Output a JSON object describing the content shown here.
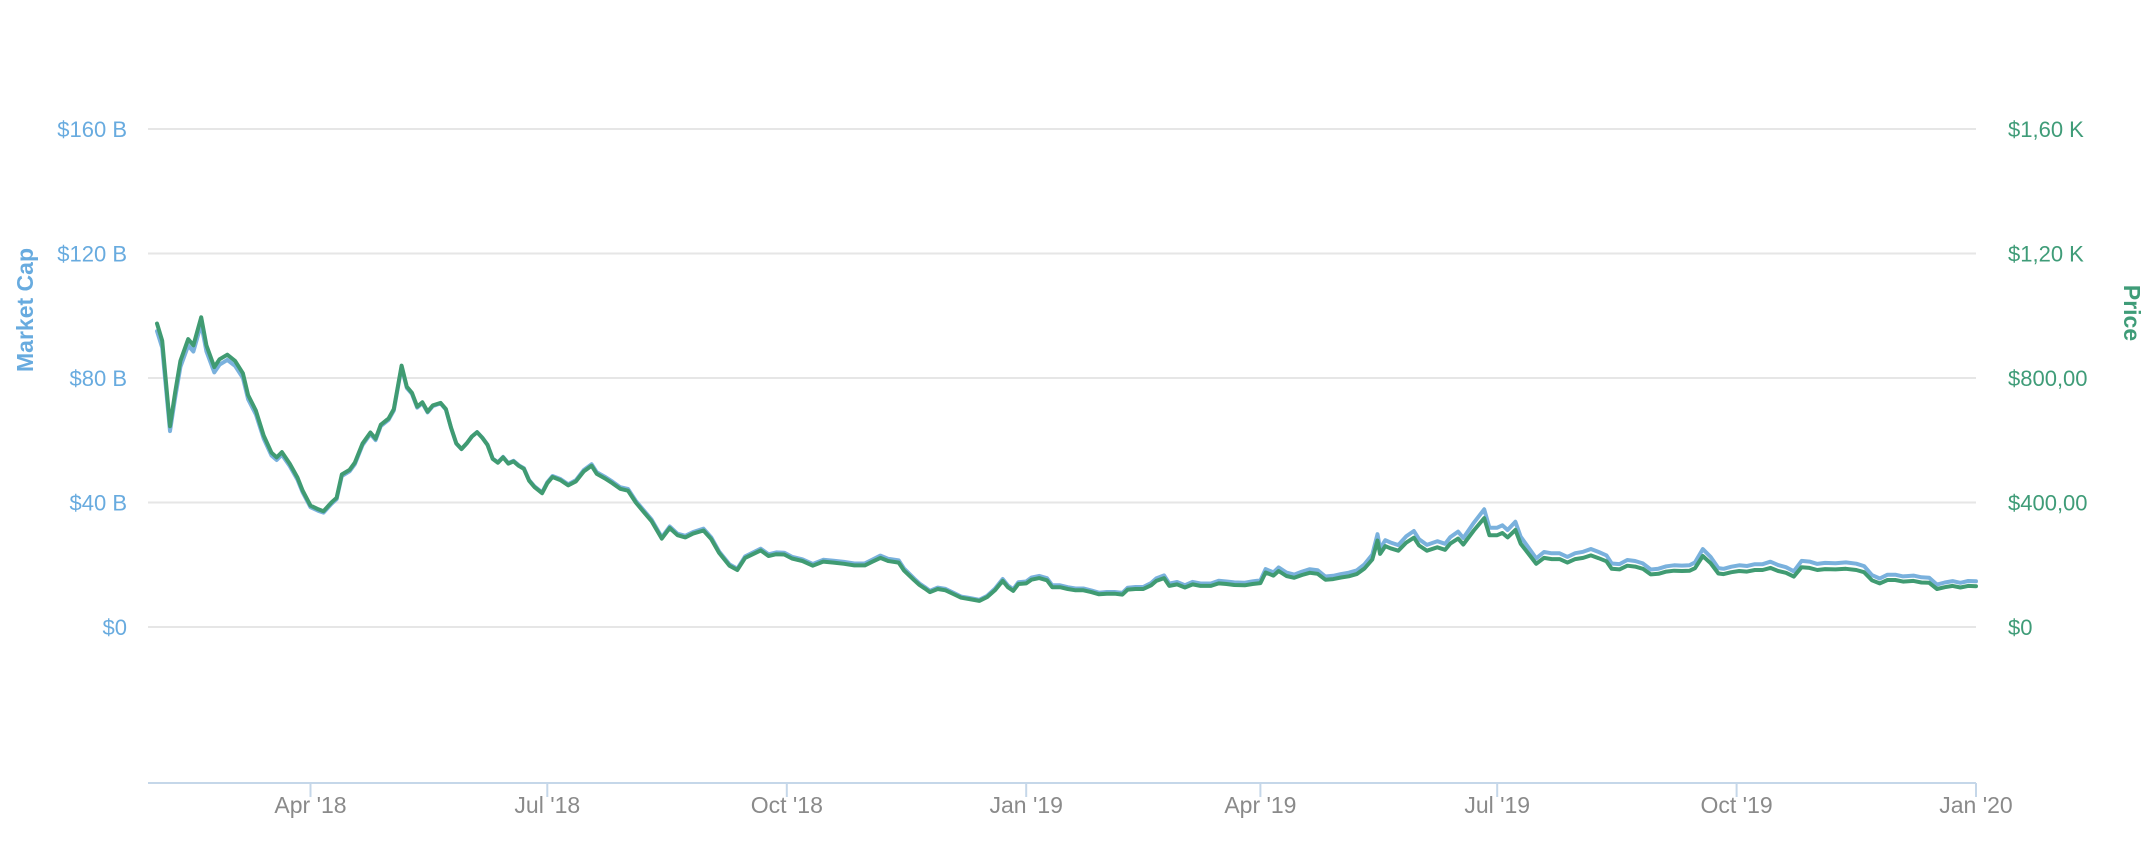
{
  "chart_data": {
    "type": "line",
    "title": "",
    "background": "#ffffff",
    "grid_color": "#e6e6e6",
    "axis_line_color": "#c5d7e9",
    "x_label_color": "#8a8a8a",
    "legend_position": "none",
    "x_axis": {
      "tick_labels": [
        "Apr '18",
        "Jul '18",
        "Oct '18",
        "Jan '19",
        "Apr '19",
        "Jul '19",
        "Oct '19",
        "Jan '20"
      ],
      "tick_dates": [
        "2018-04-01",
        "2018-07-01",
        "2018-10-01",
        "2019-01-01",
        "2019-04-01",
        "2019-07-01",
        "2019-10-01",
        "2020-01-01"
      ],
      "range_dates": [
        "2018-02-01",
        "2020-01-01"
      ]
    },
    "y_axis_left": {
      "title": "Market Cap",
      "unit": "USD billions",
      "tick_labels": [
        "$160 B",
        "$120 B",
        "$80 B",
        "$40 B",
        "$0"
      ],
      "tick_values": [
        160,
        120,
        80,
        40,
        0
      ],
      "max": 160,
      "color": "#68abdf"
    },
    "y_axis_right": {
      "title": "Price",
      "unit": "USD",
      "tick_labels": [
        "$1,60 K",
        "$1,20 K",
        "$800,00",
        "$400,00",
        "$0"
      ],
      "tick_values": [
        1600,
        1200,
        800,
        400,
        0
      ],
      "max": 1600,
      "color": "#3f9c78"
    },
    "series": [
      {
        "name": "Market Cap",
        "axis": "left",
        "color": "#7ab1dd",
        "line_width": 4,
        "derivation": "market_cap_billions = price_usd * circulating_supply_millions / 1000",
        "supply_model_millions": {
          "start": 97.5,
          "end": 112.0
        }
      },
      {
        "name": "Price",
        "axis": "right",
        "color": "#409b72",
        "line_width": 4,
        "points": [
          [
            "2018-02-01",
            975
          ],
          [
            "2018-02-03",
            920
          ],
          [
            "2018-02-06",
            645
          ],
          [
            "2018-02-08",
            755
          ],
          [
            "2018-02-10",
            855
          ],
          [
            "2018-02-13",
            925
          ],
          [
            "2018-02-15",
            905
          ],
          [
            "2018-02-18",
            995
          ],
          [
            "2018-02-20",
            905
          ],
          [
            "2018-02-23",
            835
          ],
          [
            "2018-02-25",
            860
          ],
          [
            "2018-02-28",
            875
          ],
          [
            "2018-03-03",
            855
          ],
          [
            "2018-03-06",
            815
          ],
          [
            "2018-03-08",
            745
          ],
          [
            "2018-03-11",
            695
          ],
          [
            "2018-03-14",
            615
          ],
          [
            "2018-03-17",
            560
          ],
          [
            "2018-03-19",
            545
          ],
          [
            "2018-03-21",
            562
          ],
          [
            "2018-03-24",
            525
          ],
          [
            "2018-03-27",
            480
          ],
          [
            "2018-03-29",
            438
          ],
          [
            "2018-04-01",
            390
          ],
          [
            "2018-04-04",
            378
          ],
          [
            "2018-04-06",
            372
          ],
          [
            "2018-04-09",
            400
          ],
          [
            "2018-04-11",
            415
          ],
          [
            "2018-04-13",
            490
          ],
          [
            "2018-04-16",
            505
          ],
          [
            "2018-04-18",
            528
          ],
          [
            "2018-04-21",
            590
          ],
          [
            "2018-04-24",
            625
          ],
          [
            "2018-04-26",
            605
          ],
          [
            "2018-04-28",
            650
          ],
          [
            "2018-05-01",
            670
          ],
          [
            "2018-05-03",
            700
          ],
          [
            "2018-05-06",
            840
          ],
          [
            "2018-05-08",
            772
          ],
          [
            "2018-05-10",
            752
          ],
          [
            "2018-05-12",
            708
          ],
          [
            "2018-05-14",
            722
          ],
          [
            "2018-05-16",
            692
          ],
          [
            "2018-05-18",
            712
          ],
          [
            "2018-05-21",
            720
          ],
          [
            "2018-05-23",
            700
          ],
          [
            "2018-05-25",
            640
          ],
          [
            "2018-05-27",
            590
          ],
          [
            "2018-05-29",
            572
          ],
          [
            "2018-05-31",
            590
          ],
          [
            "2018-06-02",
            612
          ],
          [
            "2018-06-04",
            626
          ],
          [
            "2018-06-06",
            608
          ],
          [
            "2018-06-08",
            585
          ],
          [
            "2018-06-10",
            540
          ],
          [
            "2018-06-12",
            528
          ],
          [
            "2018-06-14",
            545
          ],
          [
            "2018-06-16",
            525
          ],
          [
            "2018-06-18",
            532
          ],
          [
            "2018-06-20",
            518
          ],
          [
            "2018-06-22",
            508
          ],
          [
            "2018-06-24",
            470
          ],
          [
            "2018-06-26",
            450
          ],
          [
            "2018-06-29",
            430
          ],
          [
            "2018-07-01",
            462
          ],
          [
            "2018-07-03",
            482
          ],
          [
            "2018-07-06",
            472
          ],
          [
            "2018-07-09",
            455
          ],
          [
            "2018-07-12",
            468
          ],
          [
            "2018-07-15",
            500
          ],
          [
            "2018-07-18",
            518
          ],
          [
            "2018-07-20",
            492
          ],
          [
            "2018-07-23",
            478
          ],
          [
            "2018-07-26",
            462
          ],
          [
            "2018-07-29",
            444
          ],
          [
            "2018-08-01",
            438
          ],
          [
            "2018-08-04",
            400
          ],
          [
            "2018-08-07",
            370
          ],
          [
            "2018-08-10",
            341
          ],
          [
            "2018-08-14",
            284
          ],
          [
            "2018-08-17",
            318
          ],
          [
            "2018-08-20",
            295
          ],
          [
            "2018-08-23",
            288
          ],
          [
            "2018-08-26",
            300
          ],
          [
            "2018-08-30",
            310
          ],
          [
            "2018-09-02",
            282
          ],
          [
            "2018-09-05",
            238
          ],
          [
            "2018-09-09",
            197
          ],
          [
            "2018-09-12",
            183
          ],
          [
            "2018-09-15",
            222
          ],
          [
            "2018-09-21",
            246
          ],
          [
            "2018-09-24",
            228
          ],
          [
            "2018-09-27",
            234
          ],
          [
            "2018-09-30",
            233
          ],
          [
            "2018-10-03",
            220
          ],
          [
            "2018-10-07",
            212
          ],
          [
            "2018-10-11",
            197
          ],
          [
            "2018-10-15",
            210
          ],
          [
            "2018-10-19",
            207
          ],
          [
            "2018-10-23",
            203
          ],
          [
            "2018-10-27",
            198
          ],
          [
            "2018-10-31",
            198
          ],
          [
            "2018-11-03",
            210
          ],
          [
            "2018-11-06",
            222
          ],
          [
            "2018-11-09",
            212
          ],
          [
            "2018-11-13",
            207
          ],
          [
            "2018-11-15",
            182
          ],
          [
            "2018-11-19",
            150
          ],
          [
            "2018-11-21",
            135
          ],
          [
            "2018-11-23",
            124
          ],
          [
            "2018-11-25",
            112
          ],
          [
            "2018-11-28",
            122
          ],
          [
            "2018-12-01",
            118
          ],
          [
            "2018-12-04",
            106
          ],
          [
            "2018-12-07",
            94
          ],
          [
            "2018-12-10",
            90
          ],
          [
            "2018-12-14",
            84
          ],
          [
            "2018-12-17",
            96
          ],
          [
            "2018-12-20",
            118
          ],
          [
            "2018-12-23",
            148
          ],
          [
            "2018-12-25",
            128
          ],
          [
            "2018-12-27",
            116
          ],
          [
            "2018-12-29",
            138
          ],
          [
            "2019-01-01",
            140
          ],
          [
            "2019-01-03",
            152
          ],
          [
            "2019-01-06",
            157
          ],
          [
            "2019-01-09",
            150
          ],
          [
            "2019-01-11",
            128
          ],
          [
            "2019-01-14",
            128
          ],
          [
            "2019-01-17",
            122
          ],
          [
            "2019-01-20",
            118
          ],
          [
            "2019-01-23",
            118
          ],
          [
            "2019-01-26",
            112
          ],
          [
            "2019-01-29",
            105
          ],
          [
            "2019-02-01",
            107
          ],
          [
            "2019-02-04",
            107
          ],
          [
            "2019-02-07",
            104
          ],
          [
            "2019-02-09",
            120
          ],
          [
            "2019-02-12",
            122
          ],
          [
            "2019-02-15",
            122
          ],
          [
            "2019-02-18",
            134
          ],
          [
            "2019-02-20",
            148
          ],
          [
            "2019-02-23",
            157
          ],
          [
            "2019-02-25",
            132
          ],
          [
            "2019-02-28",
            137
          ],
          [
            "2019-03-03",
            127
          ],
          [
            "2019-03-06",
            137
          ],
          [
            "2019-03-09",
            132
          ],
          [
            "2019-03-13",
            132
          ],
          [
            "2019-03-16",
            140
          ],
          [
            "2019-03-19",
            138
          ],
          [
            "2019-03-22",
            135
          ],
          [
            "2019-03-26",
            134
          ],
          [
            "2019-03-29",
            138
          ],
          [
            "2019-04-01",
            141
          ],
          [
            "2019-04-03",
            175
          ],
          [
            "2019-04-06",
            165
          ],
          [
            "2019-04-08",
            180
          ],
          [
            "2019-04-11",
            164
          ],
          [
            "2019-04-14",
            158
          ],
          [
            "2019-04-17",
            167
          ],
          [
            "2019-04-20",
            174
          ],
          [
            "2019-04-23",
            171
          ],
          [
            "2019-04-26",
            152
          ],
          [
            "2019-04-29",
            154
          ],
          [
            "2019-05-02",
            159
          ],
          [
            "2019-05-05",
            163
          ],
          [
            "2019-05-08",
            170
          ],
          [
            "2019-05-11",
            188
          ],
          [
            "2019-05-14",
            217
          ],
          [
            "2019-05-16",
            278
          ],
          [
            "2019-05-17",
            235
          ],
          [
            "2019-05-19",
            260
          ],
          [
            "2019-05-21",
            253
          ],
          [
            "2019-05-24",
            245
          ],
          [
            "2019-05-27",
            271
          ],
          [
            "2019-05-30",
            287
          ],
          [
            "2019-06-01",
            262
          ],
          [
            "2019-06-04",
            245
          ],
          [
            "2019-06-08",
            256
          ],
          [
            "2019-06-11",
            248
          ],
          [
            "2019-06-13",
            268
          ],
          [
            "2019-06-16",
            284
          ],
          [
            "2019-06-18",
            265
          ],
          [
            "2019-06-22",
            310
          ],
          [
            "2019-06-26",
            350
          ],
          [
            "2019-06-28",
            295
          ],
          [
            "2019-07-01",
            295
          ],
          [
            "2019-07-03",
            302
          ],
          [
            "2019-07-05",
            288
          ],
          [
            "2019-07-08",
            312
          ],
          [
            "2019-07-10",
            268
          ],
          [
            "2019-07-14",
            225
          ],
          [
            "2019-07-16",
            203
          ],
          [
            "2019-07-19",
            222
          ],
          [
            "2019-07-22",
            218
          ],
          [
            "2019-07-25",
            218
          ],
          [
            "2019-07-28",
            207
          ],
          [
            "2019-07-31",
            218
          ],
          [
            "2019-08-03",
            222
          ],
          [
            "2019-08-06",
            230
          ],
          [
            "2019-08-09",
            221
          ],
          [
            "2019-08-12",
            211
          ],
          [
            "2019-08-14",
            187
          ],
          [
            "2019-08-17",
            185
          ],
          [
            "2019-08-20",
            197
          ],
          [
            "2019-08-23",
            194
          ],
          [
            "2019-08-26",
            187
          ],
          [
            "2019-08-29",
            169
          ],
          [
            "2019-09-01",
            171
          ],
          [
            "2019-09-04",
            178
          ],
          [
            "2019-09-07",
            181
          ],
          [
            "2019-09-10",
            180
          ],
          [
            "2019-09-13",
            181
          ],
          [
            "2019-09-15",
            189
          ],
          [
            "2019-09-18",
            228
          ],
          [
            "2019-09-21",
            205
          ],
          [
            "2019-09-24",
            172
          ],
          [
            "2019-09-26",
            170
          ],
          [
            "2019-09-29",
            176
          ],
          [
            "2019-10-02",
            180
          ],
          [
            "2019-10-05",
            178
          ],
          [
            "2019-10-08",
            183
          ],
          [
            "2019-10-11",
            183
          ],
          [
            "2019-10-14",
            190
          ],
          [
            "2019-10-17",
            180
          ],
          [
            "2019-10-20",
            174
          ],
          [
            "2019-10-23",
            162
          ],
          [
            "2019-10-26",
            192
          ],
          [
            "2019-10-29",
            190
          ],
          [
            "2019-11-01",
            183
          ],
          [
            "2019-11-04",
            186
          ],
          [
            "2019-11-08",
            185
          ],
          [
            "2019-11-12",
            187
          ],
          [
            "2019-11-16",
            183
          ],
          [
            "2019-11-19",
            176
          ],
          [
            "2019-11-22",
            150
          ],
          [
            "2019-11-25",
            140
          ],
          [
            "2019-11-28",
            151
          ],
          [
            "2019-12-01",
            151
          ],
          [
            "2019-12-04",
            146
          ],
          [
            "2019-12-08",
            148
          ],
          [
            "2019-12-11",
            143
          ],
          [
            "2019-12-14",
            142
          ],
          [
            "2019-12-17",
            122
          ],
          [
            "2019-12-20",
            128
          ],
          [
            "2019-12-23",
            132
          ],
          [
            "2019-12-26",
            127
          ],
          [
            "2019-12-29",
            132
          ],
          [
            "2020-01-01",
            131
          ]
        ]
      }
    ]
  }
}
